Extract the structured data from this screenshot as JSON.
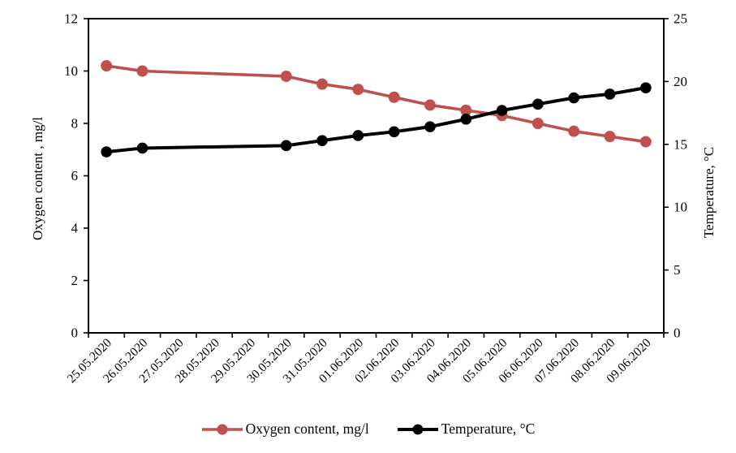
{
  "chart_data": {
    "type": "line",
    "title": "",
    "categories": [
      "25.05.2020",
      "26.05.2020",
      "27.05.2020",
      "28.05.2020",
      "29.05.2020",
      "30.05.2020",
      "31.05.2020",
      "01.06.2020",
      "02.06.2020",
      "03.06.2020",
      "04.06.2020",
      "05.06.2020",
      "06.06.2020",
      "07.06.2020",
      "08.06.2020",
      "09.06.2020"
    ],
    "series": [
      {
        "name": "Oxygen content, mg/l",
        "color": "#c0504d",
        "axis": "left",
        "marker": "circle",
        "values": [
          10.2,
          10.0,
          null,
          null,
          null,
          9.8,
          9.5,
          9.3,
          9.0,
          8.7,
          8.5,
          8.3,
          8.0,
          7.7,
          7.5,
          7.3
        ]
      },
      {
        "name": "Temperature,  °C",
        "color": "#000000",
        "axis": "right",
        "marker": "circle",
        "values": [
          14.4,
          14.7,
          null,
          null,
          null,
          14.9,
          15.3,
          15.7,
          16.0,
          16.4,
          17.0,
          17.7,
          18.2,
          18.7,
          19.0,
          19.5
        ]
      }
    ],
    "left_axis": {
      "title": "Oxygen content , mg/l",
      "min": 0,
      "max": 12,
      "ticks": [
        0,
        2,
        4,
        6,
        8,
        10,
        12
      ]
    },
    "right_axis": {
      "title": "Temperature,  °C",
      "min": 0,
      "max": 25,
      "ticks": [
        0,
        5,
        10,
        15,
        20,
        25
      ]
    },
    "x_axis": {
      "label_rotation_deg": -45
    },
    "legend_position": "bottom",
    "grid": false,
    "plot_border": true,
    "background": "#ffffff"
  }
}
